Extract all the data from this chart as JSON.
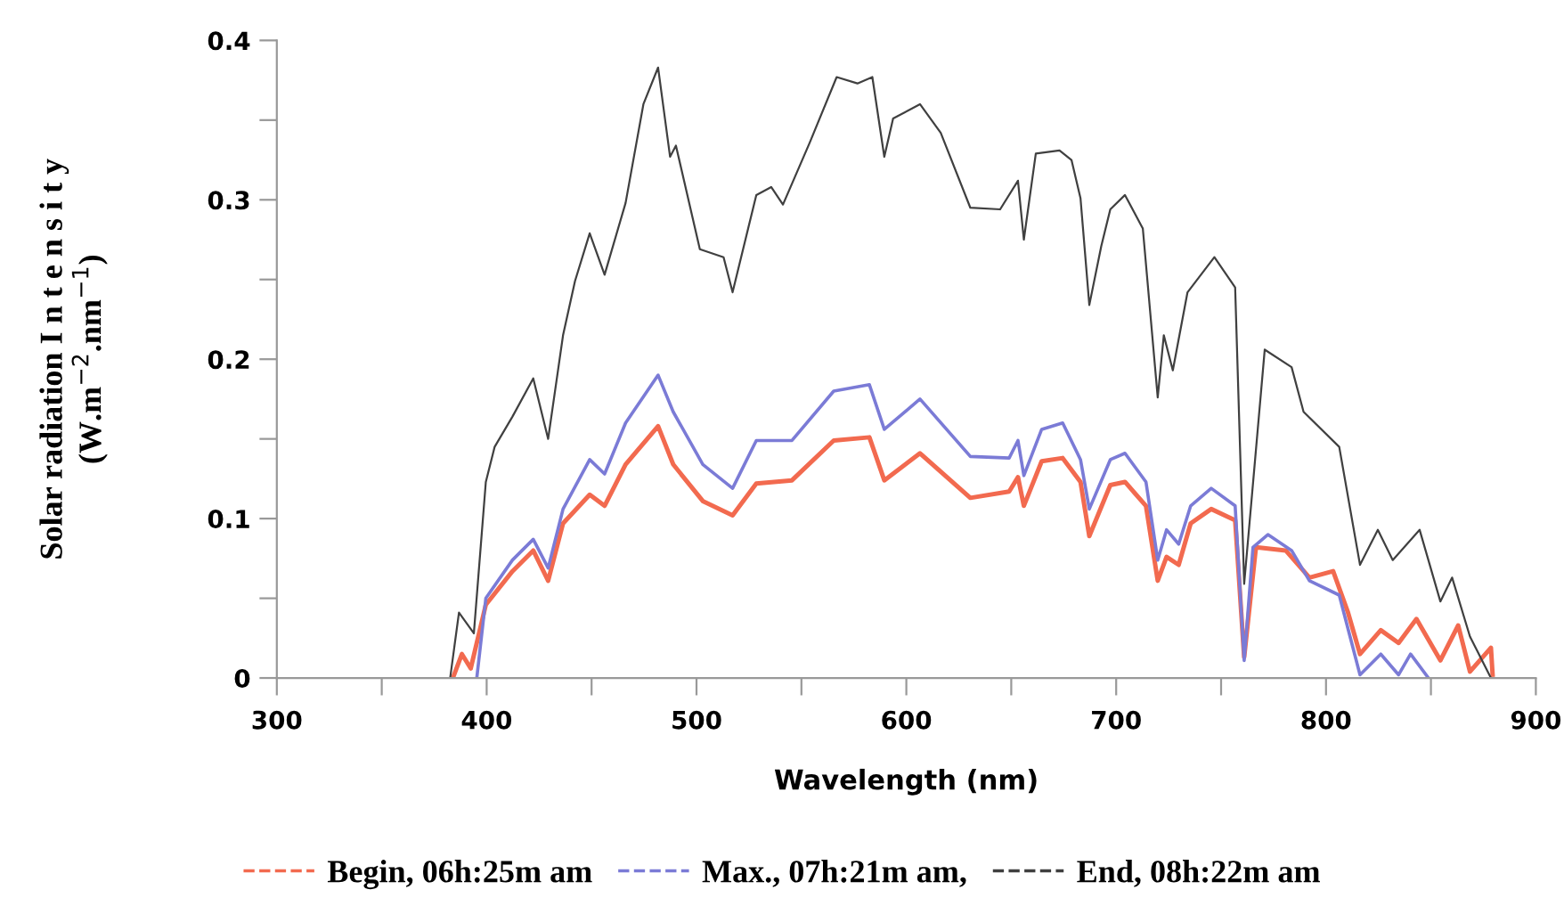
{
  "chart_data": {
    "type": "line",
    "xlabel": "Wavelength (nm)",
    "ylabel": "Solar radiation I n t e n s i t y\n(W.m$^{−2}$.nm$^{−1}$)",
    "xlim": [
      300,
      900
    ],
    "ylim": [
      0,
      0.4
    ],
    "xticks": [
      300,
      {
        "value": 350,
        "label": null
      },
      400,
      {
        "value": 450,
        "label": null
      },
      500,
      {
        "value": 550,
        "label": null
      },
      600,
      {
        "value": 650,
        "label": null
      },
      700,
      {
        "value": 750,
        "label": null
      },
      800,
      {
        "value": 850,
        "label": null
      },
      900
    ],
    "yticks": [
      0,
      {
        "value": 0.05,
        "label": null
      },
      0.1,
      {
        "value": 0.15,
        "label": null
      },
      0.2,
      {
        "value": 0.25,
        "label": null
      },
      0.3,
      {
        "value": 0.35,
        "label": null
      },
      0.4
    ],
    "grid": false,
    "legend": "bottom",
    "marker": "none",
    "line_style": "solid",
    "series": [
      {
        "name": "Begin, 06h:25m am",
        "color": "#f26a4f",
        "x": [
          383.9,
          388.2,
          392.4,
          399.6,
          412.3,
          422.2,
          429.3,
          436.4,
          449.1,
          456.2,
          466.2,
          481.7,
          488.9,
          503.0,
          517.2,
          528.5,
          545.5,
          565.4,
          582.4,
          589.5,
          606.5,
          630.5,
          649.0,
          653.2,
          656.0,
          664.5,
          674.5,
          683.0,
          687.2,
          697.2,
          704.2,
          714.2,
          719.8,
          724.0,
          729.8,
          735.5,
          745.3,
          756.7,
          761.0,
          766.6,
          780.8,
          792.1,
          803.4,
          810.5,
          816.2,
          826.1,
          834.6,
          843.1,
          854.5,
          863.0,
          868.6,
          878.6,
          879.4
        ],
        "values": [
          0,
          0.015,
          0.006,
          0.046,
          0.067,
          0.08,
          0.061,
          0.097,
          0.115,
          0.108,
          0.134,
          0.158,
          0.134,
          0.111,
          0.102,
          0.122,
          0.124,
          0.149,
          0.151,
          0.124,
          0.141,
          0.113,
          0.117,
          0.126,
          0.108,
          0.136,
          0.138,
          0.123,
          0.089,
          0.121,
          0.123,
          0.108,
          0.061,
          0.076,
          0.071,
          0.097,
          0.106,
          0.099,
          0.013,
          0.082,
          0.08,
          0.063,
          0.067,
          0.041,
          0.015,
          0.03,
          0.022,
          0.037,
          0.011,
          0.033,
          0.004,
          0.019,
          0.002
        ]
      },
      {
        "name": "Max., 07h:21m am,",
        "color": "#7b7bd6",
        "x": [
          395.3,
          399.6,
          412.3,
          422.2,
          429.3,
          436.4,
          449.1,
          456.2,
          466.2,
          481.7,
          488.9,
          503.0,
          517.2,
          528.5,
          545.5,
          565.4,
          582.4,
          589.5,
          606.5,
          630.5,
          649.0,
          653.2,
          656.0,
          664.5,
          674.5,
          683.0,
          687.2,
          697.2,
          704.2,
          714.2,
          719.8,
          724.0,
          729.8,
          735.5,
          745.3,
          756.7,
          761.0,
          765.2,
          772.3,
          783.6,
          792.1,
          806.3,
          816.2,
          826.1,
          834.6,
          840.3,
          848.8
        ],
        "values": [
          0,
          0.05,
          0.074,
          0.087,
          0.069,
          0.106,
          0.137,
          0.128,
          0.16,
          0.19,
          0.167,
          0.134,
          0.119,
          0.149,
          0.149,
          0.18,
          0.184,
          0.156,
          0.175,
          0.139,
          0.138,
          0.149,
          0.127,
          0.156,
          0.16,
          0.137,
          0.106,
          0.137,
          0.141,
          0.123,
          0.074,
          0.093,
          0.084,
          0.108,
          0.119,
          0.108,
          0.011,
          0.082,
          0.09,
          0.08,
          0.061,
          0.052,
          0.002,
          0.015,
          0.002,
          0.015,
          0
        ]
      },
      {
        "name": "End, 08h:22m am",
        "color": "#404040",
        "x": [
          382.6,
          386.8,
          393.9,
          399.6,
          403.8,
          412.3,
          422.2,
          429.3,
          436.4,
          442.1,
          449.1,
          456.2,
          466.2,
          474.7,
          481.7,
          487.4,
          490.2,
          501.6,
          512.9,
          517.2,
          528.5,
          535.6,
          541.2,
          554.0,
          566.8,
          576.7,
          583.8,
          589.5,
          593.7,
          606.5,
          616.4,
          630.5,
          644.7,
          653.2,
          656.0,
          661.7,
          673.0,
          678.7,
          683.0,
          687.2,
          692.9,
          697.2,
          704.2,
          712.7,
          719.8,
          722.7,
          727.0,
          734.0,
          746.8,
          756.7,
          761.0,
          770.8,
          783.6,
          789.3,
          806.3,
          816.2,
          824.7,
          831.8,
          844.6,
          854.5,
          860.1,
          868.6,
          878.6
        ],
        "values": [
          0,
          0.041,
          0.028,
          0.123,
          0.145,
          0.164,
          0.188,
          0.15,
          0.215,
          0.249,
          0.279,
          0.253,
          0.298,
          0.36,
          0.383,
          0.327,
          0.334,
          0.269,
          0.264,
          0.242,
          0.303,
          0.308,
          0.297,
          0.336,
          0.377,
          0.373,
          0.377,
          0.327,
          0.351,
          0.36,
          0.342,
          0.295,
          0.294,
          0.312,
          0.275,
          0.329,
          0.331,
          0.325,
          0.301,
          0.234,
          0.271,
          0.294,
          0.303,
          0.282,
          0.176,
          0.215,
          0.193,
          0.242,
          0.264,
          0.245,
          0.059,
          0.206,
          0.195,
          0.167,
          0.145,
          0.071,
          0.093,
          0.074,
          0.093,
          0.048,
          0.063,
          0.026,
          0
        ]
      }
    ]
  }
}
